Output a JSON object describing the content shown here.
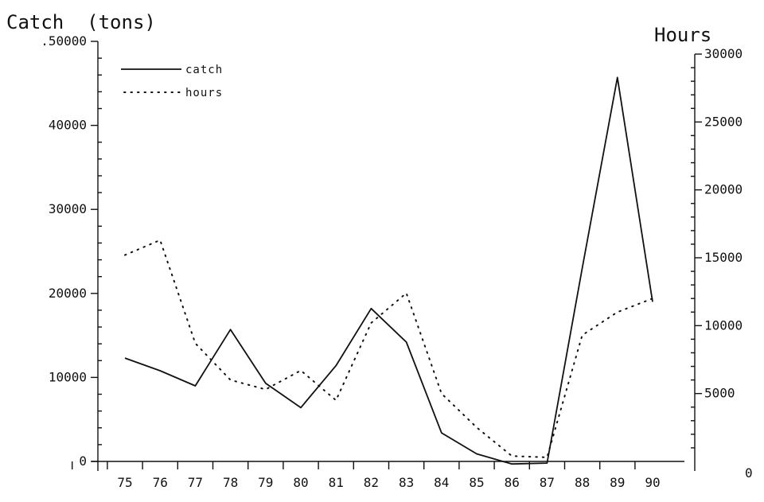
{
  "chart_data": {
    "type": "line",
    "title_left": "Catch  (tons)",
    "title_right": "Hours",
    "x": [
      "75",
      "76",
      "77",
      "78",
      "79",
      "80",
      "81",
      "82",
      "83",
      "84",
      "85",
      "86",
      "87",
      "88",
      "89",
      "90"
    ],
    "series": [
      {
        "name": "catch",
        "axis": "left",
        "style": "solid",
        "values": [
          12300,
          10800,
          9000,
          15700,
          9300,
          6400,
          11400,
          18200,
          14200,
          3400,
          900,
          -300,
          -200,
          23000,
          45700,
          19000
        ]
      },
      {
        "name": "hours",
        "axis": "right",
        "style": "dotted",
        "values": [
          15200,
          16300,
          8700,
          6000,
          5300,
          6700,
          4500,
          10200,
          12400,
          5000,
          2500,
          400,
          300,
          9300,
          11000,
          12000
        ]
      }
    ],
    "yleft": {
      "min": 0,
      "max": 50000,
      "ticks": [
        0,
        10000,
        20000,
        30000,
        40000
      ],
      "top_label": ".50000"
    },
    "yright": {
      "min": 0,
      "max": 30000,
      "ticks": [
        0,
        5000,
        10000,
        15000,
        20000,
        25000,
        30000
      ]
    },
    "legend": {
      "position": "top-left",
      "entries": [
        "catch",
        "hours"
      ]
    },
    "grid": false
  }
}
